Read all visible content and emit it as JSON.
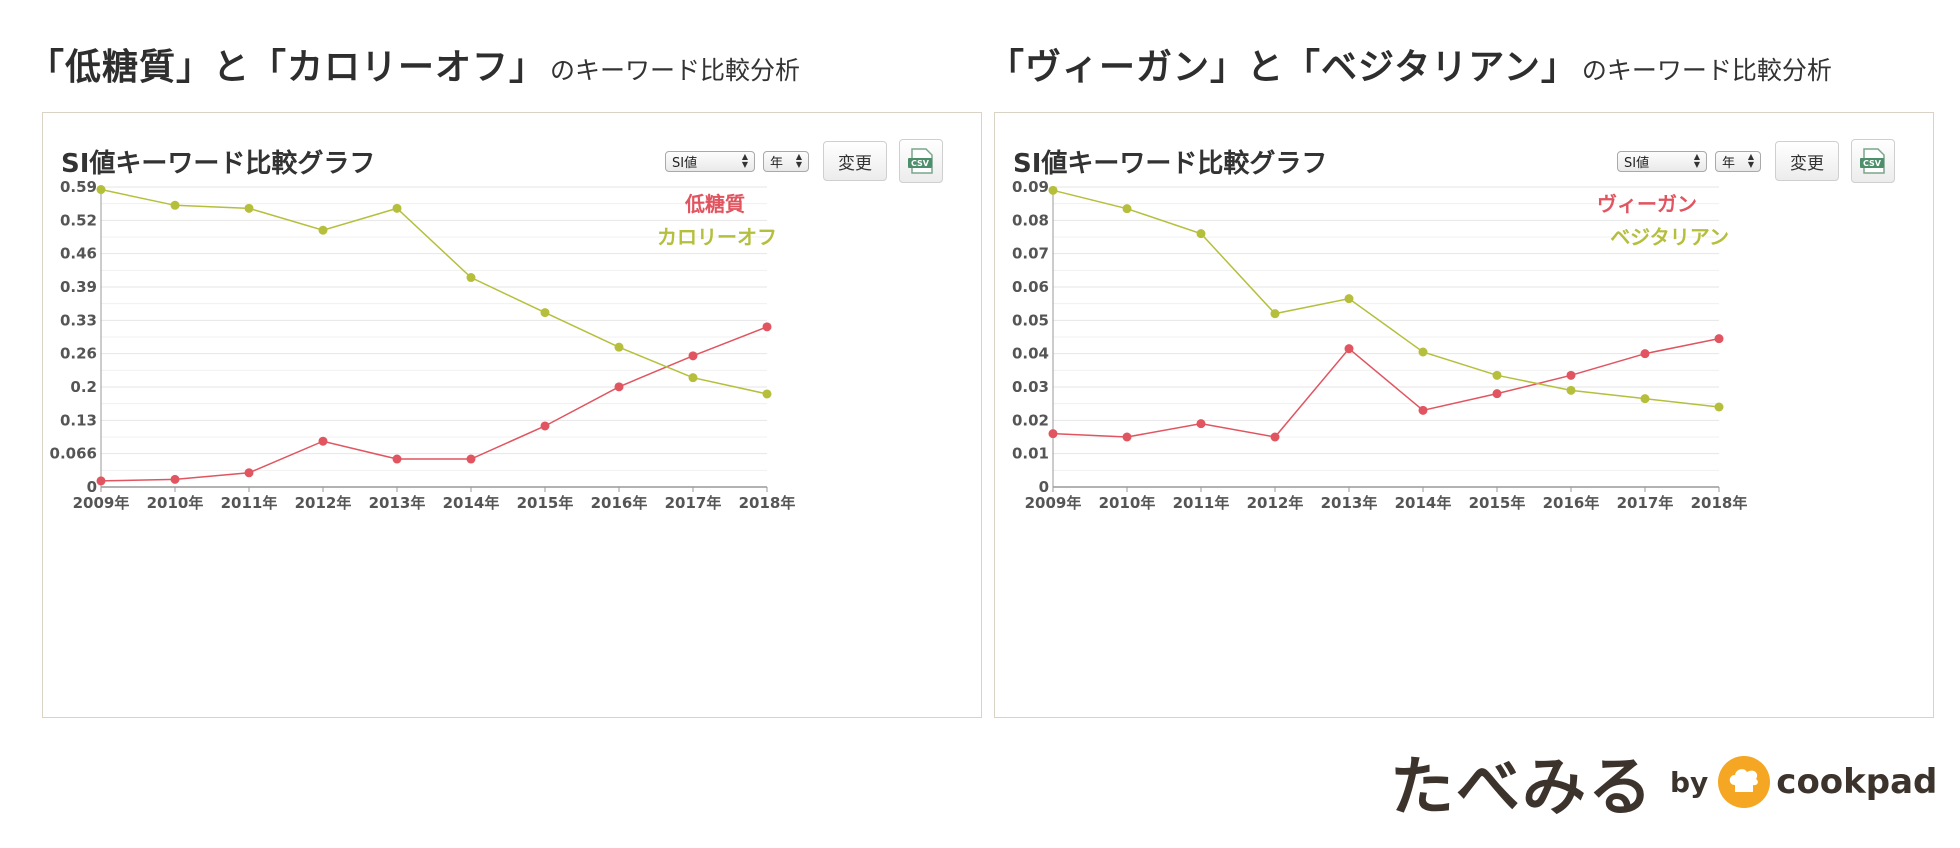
{
  "panels": [
    {
      "heading_main": "「低糖質」と「カロリーオフ」",
      "heading_sub": "のキーワード比較分析",
      "panel_title": "SI値キーワード比較グラフ",
      "select_metric": "SI値",
      "select_period": "年",
      "change_button": "変更",
      "csv_label": "CSV"
    },
    {
      "heading_main": "「ヴィーガン」と「ベジタリアン」",
      "heading_sub": "のキーワード比較分析",
      "panel_title": "SI値キーワード比較グラフ",
      "select_metric": "SI値",
      "select_period": "年",
      "change_button": "変更",
      "csv_label": "CSV"
    }
  ],
  "colors": {
    "series1": "#e05560",
    "series2": "#b5bf3c",
    "grid": "#e6e6e6",
    "axis": "#999999"
  },
  "brand": {
    "name": "たべみる",
    "by": "by",
    "partner": "cookpad",
    "logo_icon": "chef-hat-icon"
  },
  "chart_data": [
    {
      "type": "line",
      "title": "SI値キーワード比較グラフ",
      "xlabel": "",
      "ylabel": "",
      "categories": [
        "2009年",
        "2010年",
        "2011年",
        "2012年",
        "2013年",
        "2014年",
        "2015年",
        "2016年",
        "2017年",
        "2018年"
      ],
      "yticks": [
        "0",
        "0.066",
        "0.13",
        "0.2",
        "0.26",
        "0.33",
        "0.39",
        "0.46",
        "0.52",
        "0.59"
      ],
      "ylim": [
        0,
        0.59
      ],
      "grid": true,
      "legend": "top-right",
      "series": [
        {
          "name": "低糖質",
          "color": "#e05560",
          "values": [
            0.012,
            0.015,
            0.028,
            0.09,
            0.055,
            0.055,
            0.12,
            0.197,
            0.258,
            0.315
          ]
        },
        {
          "name": "カロリーオフ",
          "color": "#b5bf3c",
          "values": [
            0.585,
            0.554,
            0.548,
            0.505,
            0.548,
            0.412,
            0.343,
            0.275,
            0.215,
            0.183
          ]
        }
      ]
    },
    {
      "type": "line",
      "title": "SI値キーワード比較グラフ",
      "xlabel": "",
      "ylabel": "",
      "categories": [
        "2009年",
        "2010年",
        "2011年",
        "2012年",
        "2013年",
        "2014年",
        "2015年",
        "2016年",
        "2017年",
        "2018年"
      ],
      "yticks": [
        "0",
        "0.01",
        "0.02",
        "0.03",
        "0.04",
        "0.05",
        "0.06",
        "0.07",
        "0.08",
        "0.09"
      ],
      "ylim": [
        0,
        0.09
      ],
      "grid": true,
      "legend": "top-right",
      "series": [
        {
          "name": "ヴィーガン",
          "color": "#e05560",
          "values": [
            0.016,
            0.015,
            0.019,
            0.015,
            0.0415,
            0.023,
            0.028,
            0.0335,
            0.04,
            0.0445
          ]
        },
        {
          "name": "ベジタリアン",
          "color": "#b5bf3c",
          "values": [
            0.089,
            0.0835,
            0.076,
            0.052,
            0.0565,
            0.0405,
            0.0335,
            0.029,
            0.0265,
            0.024
          ]
        }
      ]
    }
  ]
}
